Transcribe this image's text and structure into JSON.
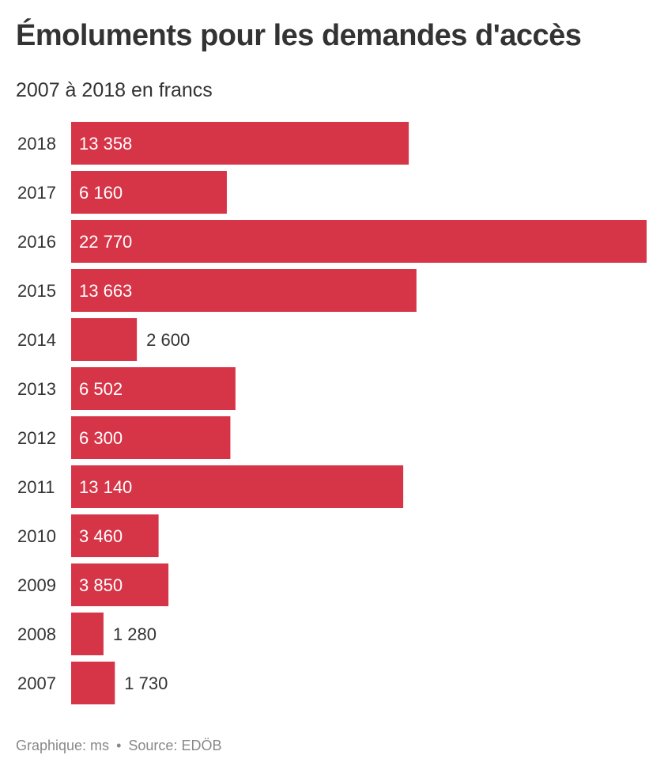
{
  "header": {
    "title": "Émoluments pour les demandes d'accès",
    "subtitle": "2007 à 2018 en francs"
  },
  "footer": {
    "credit": "Graphique: ms",
    "separator": "•",
    "source": "Source: EDÖB"
  },
  "colors": {
    "bar": "#d63447",
    "text": "#333333",
    "inside_label": "#ffffff",
    "footer": "#888888"
  },
  "chart_data": {
    "type": "bar",
    "orientation": "horizontal",
    "categories": [
      "2018",
      "2017",
      "2016",
      "2015",
      "2014",
      "2013",
      "2012",
      "2011",
      "2010",
      "2009",
      "2008",
      "2007"
    ],
    "values": [
      13358,
      6160,
      22770,
      13663,
      2600,
      6502,
      6300,
      13140,
      3460,
      3850,
      1280,
      1730
    ],
    "value_labels": [
      "13 358",
      "6 160",
      "22 770",
      "13 663",
      "2 600",
      "6 502",
      "6 300",
      "13 140",
      "3 460",
      "3 850",
      "1 280",
      "1 730"
    ],
    "title": "Émoluments pour les demandes d'accès",
    "subtitle": "2007 à 2018 en francs",
    "xlim": [
      0,
      22770
    ],
    "grid": false,
    "legend": "none"
  }
}
